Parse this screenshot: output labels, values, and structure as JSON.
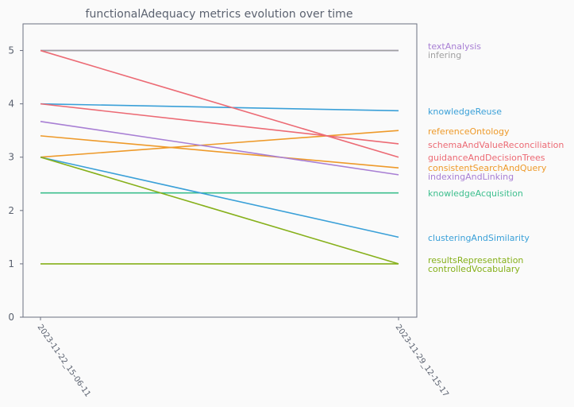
{
  "chart_data": {
    "type": "line",
    "title": "functionalAdequacy metrics evolution over time",
    "xlabel": "",
    "ylabel": "",
    "x": [
      "2023-11-22_15-06-11",
      "2023-11-29_12-15-17"
    ],
    "ylim": [
      0,
      5.5
    ],
    "yticks": [
      0,
      1,
      2,
      3,
      4,
      5
    ],
    "grid": false,
    "legend_placement": "right",
    "series": [
      {
        "name": "textAnalysis",
        "values": [
          5.0,
          5.0
        ],
        "color": "#a87fd4"
      },
      {
        "name": "infering",
        "values": [
          5.0,
          5.0
        ],
        "color": "#a0a0a0"
      },
      {
        "name": "knowledgeReuse",
        "values": [
          4.0,
          3.87
        ],
        "color": "#3aa0d8"
      },
      {
        "name": "referenceOntology",
        "values": [
          3.0,
          3.5
        ],
        "color": "#ee9a2a"
      },
      {
        "name": "schemaAndValueReconciliation",
        "values": [
          4.0,
          3.25
        ],
        "color": "#ec6a74"
      },
      {
        "name": "guidanceAndDecisionTrees",
        "values": [
          5.0,
          3.0
        ],
        "color": "#ec6a74"
      },
      {
        "name": "consistentSearchAndQuery",
        "values": [
          3.4,
          2.8
        ],
        "color": "#ee9a2a"
      },
      {
        "name": "indexingAndLinking",
        "values": [
          3.67,
          2.67
        ],
        "color": "#a87fd4"
      },
      {
        "name": "knowledgeAcquisition",
        "values": [
          2.33,
          2.33
        ],
        "color": "#3dbf8e"
      },
      {
        "name": "clusteringAndSimilarity",
        "values": [
          3.0,
          1.5
        ],
        "color": "#3aa0d8"
      },
      {
        "name": "resultsRepresentation",
        "values": [
          3.0,
          1.0
        ],
        "color": "#86b01a"
      },
      {
        "name": "controlledVocabulary",
        "values": [
          1.0,
          1.0
        ],
        "color": "#86b01a"
      }
    ]
  }
}
